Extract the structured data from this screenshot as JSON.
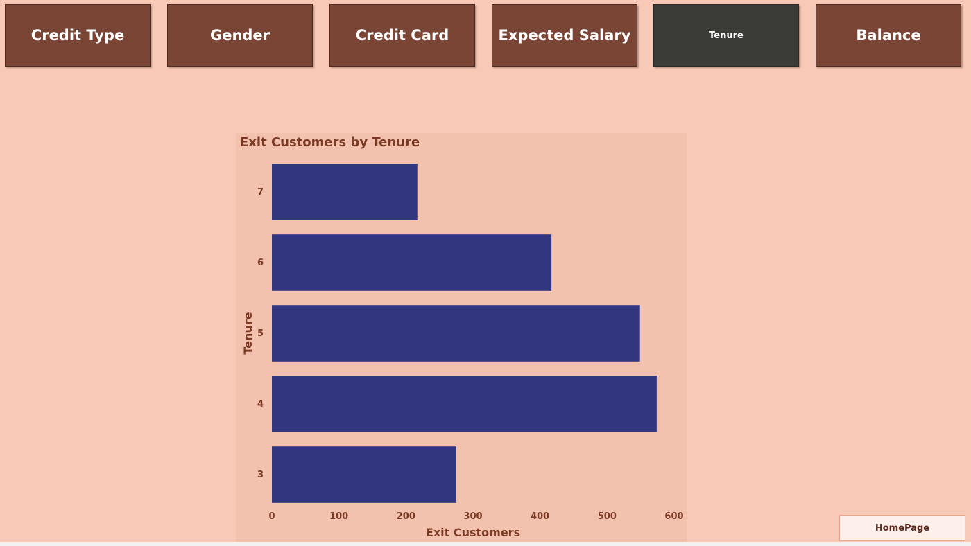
{
  "nav": {
    "buttons": [
      {
        "label": "Credit Type",
        "active": false
      },
      {
        "label": "Gender",
        "active": false
      },
      {
        "label": "Credit Card",
        "active": false
      },
      {
        "label": "Expected Salary",
        "active": false
      },
      {
        "label": "Tenure",
        "active": true
      },
      {
        "label": "Balance",
        "active": false
      }
    ]
  },
  "home_button": {
    "label": "HomePage"
  },
  "colors": {
    "background": "#f7c9b6",
    "panel": "#f3c2ae",
    "button": "#7a4535",
    "button_active": "#3b3b37",
    "bar": "#32367f",
    "text": "#7a3a24"
  },
  "chart_data": {
    "type": "bar",
    "orientation": "horizontal",
    "title": "Exit Customers by Tenure",
    "xlabel": "Exit Customers",
    "ylabel": "Tenure",
    "categories": [
      "7",
      "6",
      "5",
      "4",
      "3"
    ],
    "values": [
      217,
      417,
      549,
      574,
      275
    ],
    "xlim": [
      0,
      600
    ],
    "xticks": [
      0,
      100,
      200,
      300,
      400,
      500,
      600
    ],
    "grid": false,
    "legend": "none"
  }
}
